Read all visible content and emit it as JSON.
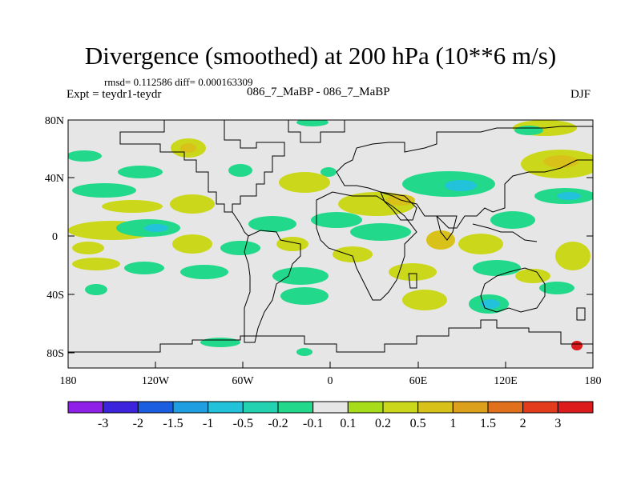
{
  "header": {
    "title": "Divergence (smoothed) at 200 hPa (10**6 m/s)",
    "stats": "rmsd= 0.112586 diff= 0.000163309",
    "expt": "Expt = teydr1-teydr",
    "cases": "086_7_MaBP - 086_7_MaBP",
    "season": "DJF"
  },
  "map": {
    "lat_ticks": [
      "80N",
      "40N",
      "0",
      "40S",
      "80S"
    ],
    "lon_ticks": [
      "180",
      "120W",
      "60W",
      "0",
      "60E",
      "120E",
      "180"
    ],
    "background_color": "#e6e6e6"
  },
  "colorbar": {
    "colors": [
      "#8f20e8",
      "#3c24dc",
      "#1b5fe0",
      "#1f9fe2",
      "#21c2da",
      "#22d2b0",
      "#22d88a",
      "#e6e6e6",
      "#a6dc1a",
      "#cbd71a",
      "#d8c21a",
      "#dca01c",
      "#e0701c",
      "#e23c1c",
      "#dc1c1c"
    ],
    "labels": [
      "-3",
      "-2",
      "-1.5",
      "-1",
      "-0.5",
      "-0.2",
      "-0.1",
      "0.1",
      "0.2",
      "0.5",
      "1",
      "1.5",
      "2",
      "3"
    ]
  }
}
